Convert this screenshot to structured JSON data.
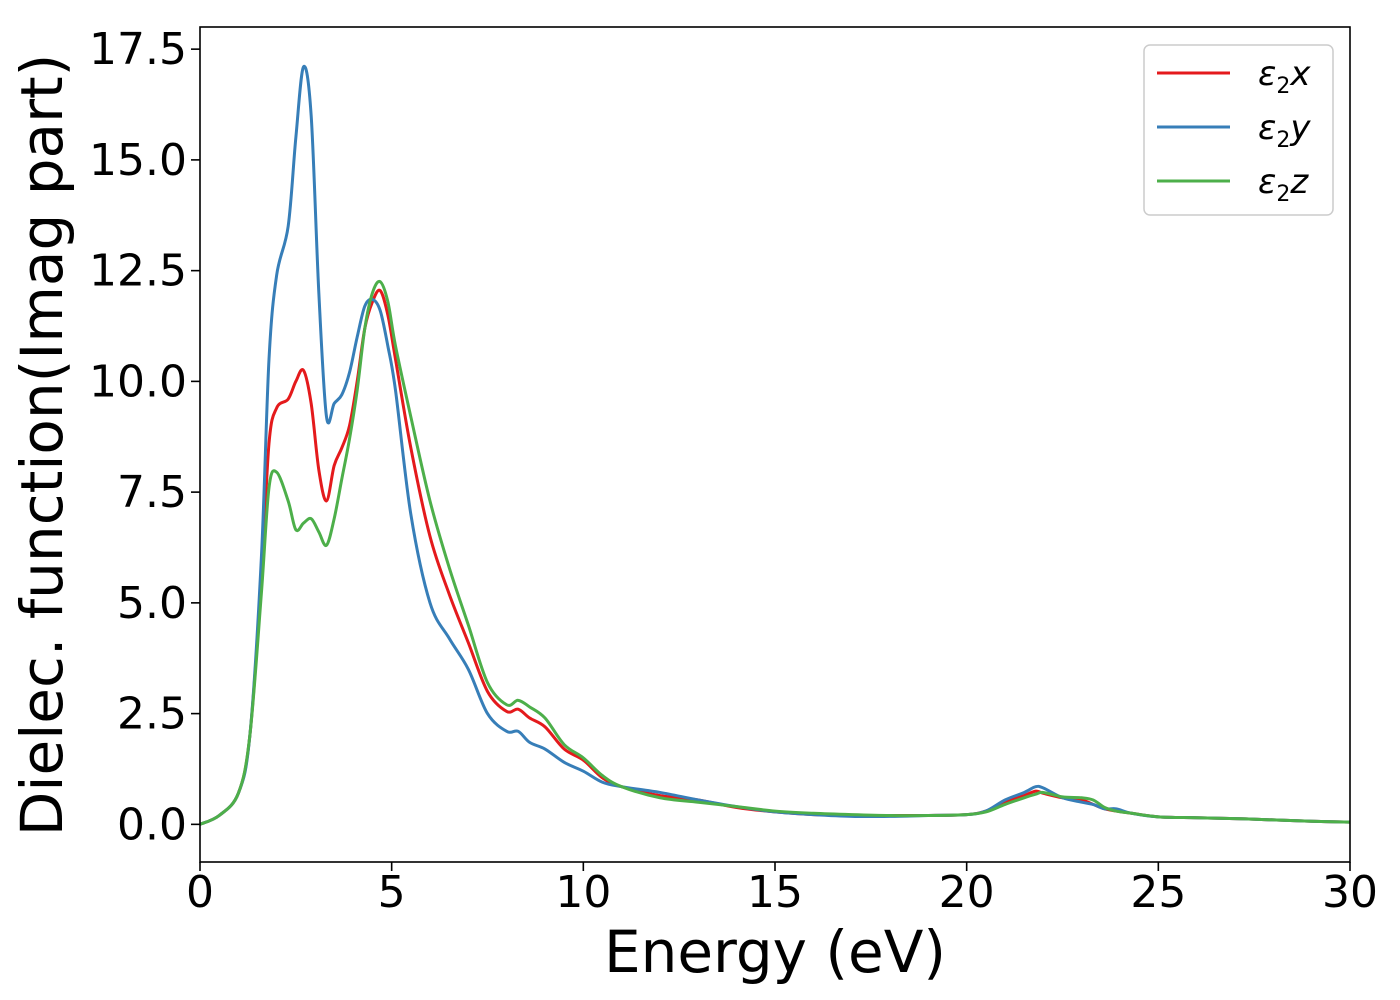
{
  "chart_data": {
    "type": "line",
    "xlabel": "Energy (eV)",
    "ylabel": "Dielec. function(Imag part)",
    "xlim": [
      0,
      30
    ],
    "ylim": [
      -0.85,
      18.0
    ],
    "xticks": [
      0,
      5,
      10,
      15,
      20,
      25,
      30
    ],
    "xtick_labels": [
      "0",
      "5",
      "10",
      "15",
      "20",
      "25",
      "30"
    ],
    "yticks": [
      0.0,
      2.5,
      5.0,
      7.5,
      10.0,
      12.5,
      15.0,
      17.5
    ],
    "ytick_labels": [
      "0.0",
      "2.5",
      "5.0",
      "7.5",
      "10.0",
      "12.5",
      "15.0",
      "17.5"
    ],
    "grid": false,
    "legend_position": "top-right",
    "series": [
      {
        "name": "ε₂x",
        "legend_base": "ε",
        "legend_sub": "2",
        "legend_var": "x",
        "color": "#e41a1c",
        "x": [
          0,
          0.5,
          1.0,
          1.3,
          1.6,
          1.8,
          2.0,
          2.3,
          2.5,
          2.7,
          2.9,
          3.1,
          3.3,
          3.5,
          3.7,
          3.9,
          4.1,
          4.3,
          4.5,
          4.7,
          4.9,
          5.1,
          5.5,
          6.0,
          6.5,
          7.0,
          7.5,
          8.0,
          8.3,
          8.6,
          9.0,
          9.5,
          10.0,
          10.5,
          11.0,
          12.0,
          13.0,
          14.0,
          15.0,
          16.0,
          17.0,
          18.0,
          19.0,
          20.0,
          20.5,
          21.0,
          21.5,
          21.8,
          22.0,
          22.5,
          23.0,
          23.3,
          23.6,
          23.9,
          24.3,
          25.0,
          26.0,
          27.0,
          28.0,
          29.0,
          30.0
        ],
        "y": [
          0.0,
          0.2,
          0.7,
          2.0,
          5.5,
          8.6,
          9.4,
          9.6,
          10.0,
          10.25,
          9.5,
          8.0,
          7.3,
          8.1,
          8.5,
          9.0,
          10.0,
          11.2,
          11.8,
          12.05,
          11.5,
          10.5,
          8.5,
          6.5,
          5.2,
          4.1,
          3.0,
          2.55,
          2.6,
          2.4,
          2.2,
          1.7,
          1.45,
          1.05,
          0.85,
          0.65,
          0.55,
          0.38,
          0.28,
          0.22,
          0.2,
          0.2,
          0.2,
          0.22,
          0.3,
          0.5,
          0.65,
          0.75,
          0.7,
          0.6,
          0.55,
          0.45,
          0.35,
          0.3,
          0.25,
          0.17,
          0.15,
          0.13,
          0.1,
          0.07,
          0.05
        ]
      },
      {
        "name": "ε₂y",
        "legend_base": "ε",
        "legend_sub": "2",
        "legend_var": "y",
        "color": "#377eb8",
        "x": [
          0,
          0.5,
          1.0,
          1.3,
          1.6,
          1.8,
          2.0,
          2.3,
          2.5,
          2.7,
          2.9,
          3.1,
          3.3,
          3.5,
          3.7,
          3.9,
          4.1,
          4.3,
          4.5,
          4.7,
          4.9,
          5.1,
          5.5,
          6.0,
          6.5,
          7.0,
          7.5,
          8.0,
          8.3,
          8.6,
          9.0,
          9.5,
          10.0,
          10.5,
          11.0,
          12.0,
          13.0,
          14.0,
          15.0,
          16.0,
          17.0,
          18.0,
          19.0,
          20.0,
          20.5,
          21.0,
          21.5,
          21.8,
          22.0,
          22.5,
          23.0,
          23.3,
          23.6,
          23.9,
          24.3,
          25.0,
          26.0,
          27.0,
          28.0,
          29.0,
          30.0
        ],
        "y": [
          0.0,
          0.2,
          0.7,
          2.0,
          6.0,
          10.5,
          12.4,
          13.5,
          15.5,
          17.1,
          16.0,
          12.0,
          9.2,
          9.5,
          9.7,
          10.2,
          11.0,
          11.7,
          11.85,
          11.6,
          10.8,
          9.8,
          7.0,
          5.0,
          4.2,
          3.5,
          2.5,
          2.1,
          2.1,
          1.85,
          1.7,
          1.4,
          1.2,
          0.95,
          0.85,
          0.72,
          0.55,
          0.4,
          0.28,
          0.22,
          0.18,
          0.18,
          0.2,
          0.22,
          0.3,
          0.55,
          0.72,
          0.85,
          0.82,
          0.6,
          0.5,
          0.45,
          0.35,
          0.35,
          0.25,
          0.17,
          0.15,
          0.13,
          0.1,
          0.07,
          0.05
        ]
      },
      {
        "name": "ε₂z",
        "legend_base": "ε",
        "legend_sub": "2",
        "legend_var": "z",
        "color": "#4daf4a",
        "x": [
          0,
          0.5,
          1.0,
          1.3,
          1.6,
          1.8,
          2.0,
          2.3,
          2.5,
          2.7,
          2.9,
          3.1,
          3.3,
          3.5,
          3.7,
          3.9,
          4.1,
          4.3,
          4.5,
          4.7,
          4.9,
          5.1,
          5.5,
          6.0,
          6.5,
          7.0,
          7.5,
          8.0,
          8.3,
          8.6,
          9.0,
          9.5,
          10.0,
          10.5,
          11.0,
          12.0,
          13.0,
          14.0,
          15.0,
          16.0,
          17.0,
          18.0,
          19.0,
          20.0,
          20.5,
          21.0,
          21.5,
          21.8,
          22.0,
          22.5,
          23.0,
          23.3,
          23.6,
          23.9,
          24.3,
          25.0,
          26.0,
          27.0,
          28.0,
          29.0,
          30.0
        ],
        "y": [
          0.0,
          0.2,
          0.7,
          2.0,
          5.2,
          7.6,
          7.95,
          7.3,
          6.65,
          6.8,
          6.9,
          6.6,
          6.3,
          6.9,
          7.8,
          8.7,
          9.8,
          11.2,
          12.0,
          12.25,
          11.8,
          10.8,
          9.2,
          7.3,
          5.8,
          4.5,
          3.2,
          2.7,
          2.8,
          2.65,
          2.4,
          1.8,
          1.5,
          1.1,
          0.85,
          0.6,
          0.5,
          0.4,
          0.3,
          0.25,
          0.22,
          0.2,
          0.2,
          0.22,
          0.28,
          0.45,
          0.6,
          0.68,
          0.72,
          0.62,
          0.6,
          0.55,
          0.38,
          0.3,
          0.25,
          0.17,
          0.15,
          0.13,
          0.1,
          0.07,
          0.05
        ]
      }
    ]
  }
}
